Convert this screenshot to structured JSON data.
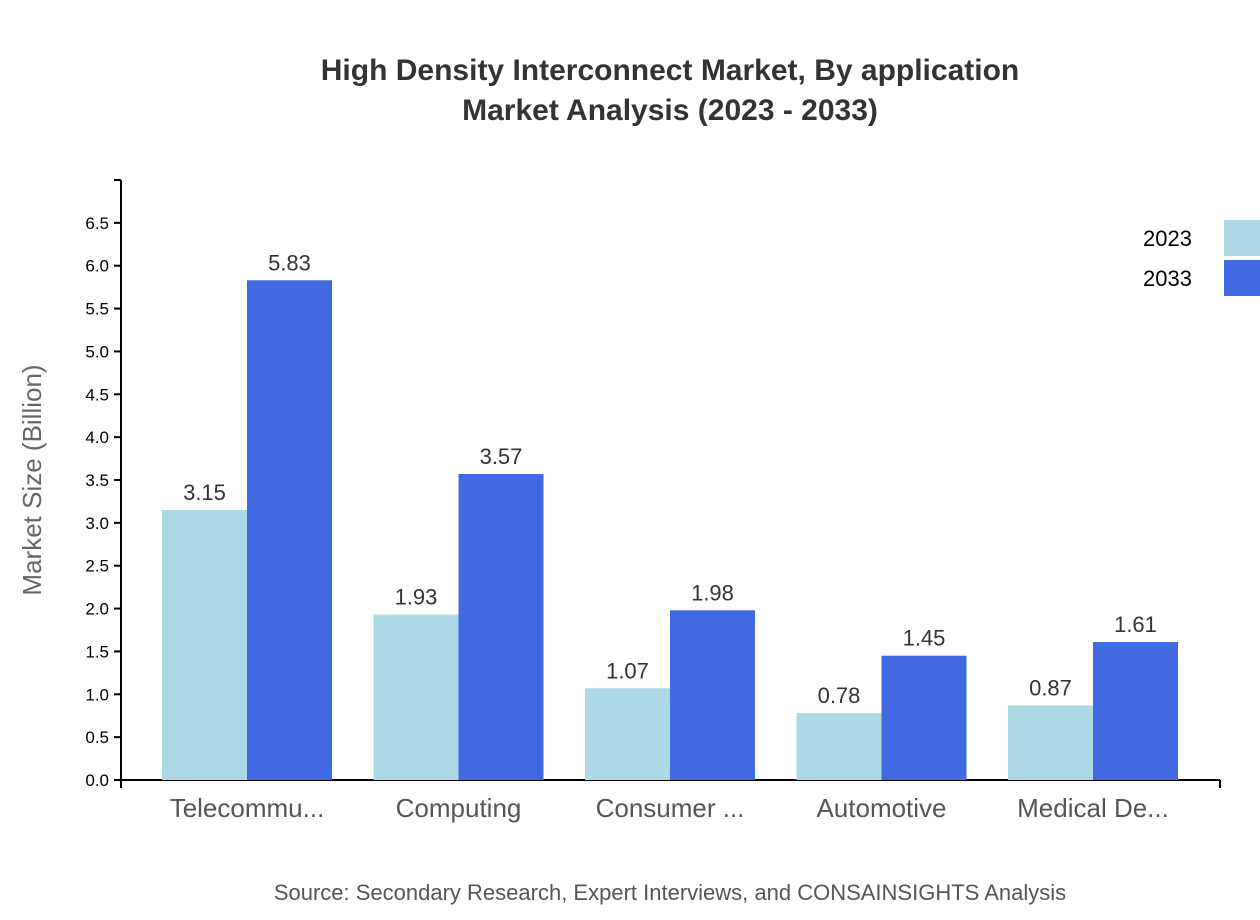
{
  "chart_data": {
    "type": "bar",
    "title": "High Density Interconnect Market, By application",
    "subtitle": "Market Analysis (2023 - 2033)",
    "xlabel": "",
    "ylabel": "Market Size (Billion)",
    "ylim": [
      0,
      7
    ],
    "yticks": [
      "0.0",
      "0.5",
      "1.0",
      "1.5",
      "2.0",
      "2.5",
      "3.0",
      "3.5",
      "4.0",
      "4.5",
      "5.0",
      "5.5",
      "6.0",
      "6.5"
    ],
    "categories": [
      "Telecommu...",
      "Computing",
      "Consumer ...",
      "Automotive",
      "Medical De..."
    ],
    "series": [
      {
        "name": "2023",
        "color": "#add8e6",
        "values": [
          3.15,
          1.93,
          1.07,
          0.78,
          0.87
        ],
        "labels": [
          "3.15",
          "1.93",
          "1.07",
          "0.78",
          "0.87"
        ]
      },
      {
        "name": "2033",
        "color": "#4169e1",
        "values": [
          5.83,
          3.57,
          1.98,
          1.45,
          1.61
        ],
        "labels": [
          "5.83",
          "3.57",
          "1.98",
          "1.45",
          "1.61"
        ]
      }
    ],
    "grid": false,
    "legend": "top-right",
    "source": "Source: Secondary Research, Expert Interviews, and CONSAINSIGHTS Analysis"
  }
}
